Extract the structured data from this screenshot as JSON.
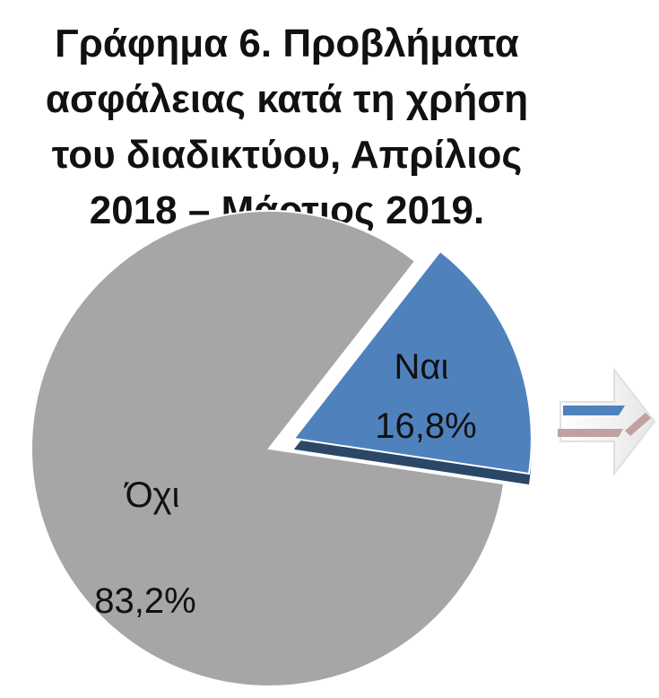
{
  "chart_data": {
    "type": "pie",
    "title_lines": [
      "Γράφημα 6. Προβλήματα",
      "ασφάλειας κατά τη χρήση",
      "του διαδικτύου, Απρίλιος",
      "2018 – Μάρτιος 2019."
    ],
    "slices": [
      {
        "label": "Ναι",
        "value": 16.8,
        "value_label": "16,8%",
        "color": "#4f81bd",
        "exploded": true
      },
      {
        "label": "Όχι",
        "value": 83.2,
        "value_label": "83,2%",
        "color": "#a6a6a6",
        "exploded": false
      }
    ]
  },
  "decorations": {
    "next_arrow": {
      "icon": "double-arrow-icon",
      "colors": [
        "#4f81bd",
        "#c0a0a0"
      ]
    }
  }
}
